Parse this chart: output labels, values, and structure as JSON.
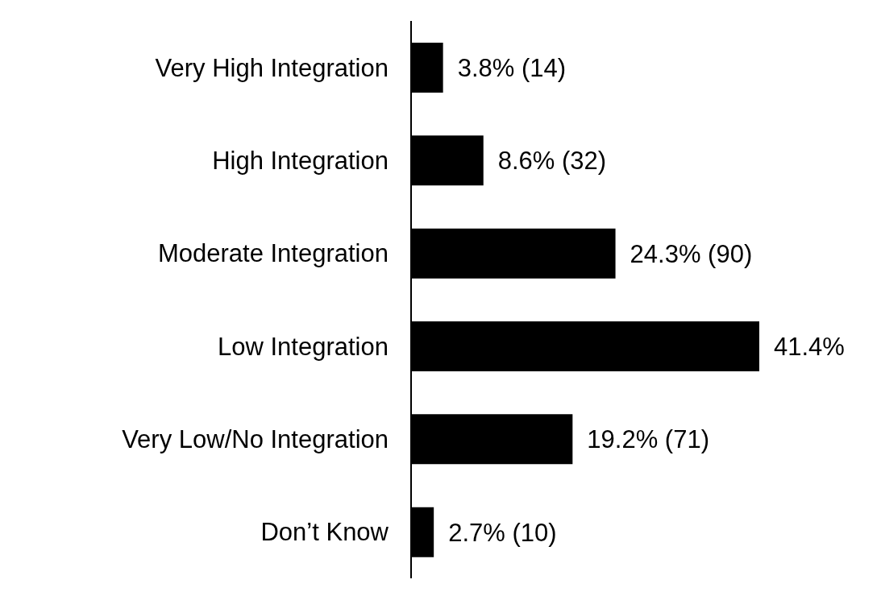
{
  "chart_data": {
    "type": "bar",
    "orientation": "horizontal",
    "categories": [
      "Very High Integration",
      "High Integration",
      "Moderate Integration",
      "Low Integration",
      "Very Low/No Integration",
      "Don’t Know"
    ],
    "values": [
      3.8,
      8.6,
      24.3,
      41.4,
      19.2,
      2.7
    ],
    "value_labels": [
      "3.8% (14)",
      "8.6% (32)",
      "24.3% (90)",
      "41.4%",
      "19.2% (71)",
      "2.7% (10)"
    ],
    "color": "#000000"
  }
}
